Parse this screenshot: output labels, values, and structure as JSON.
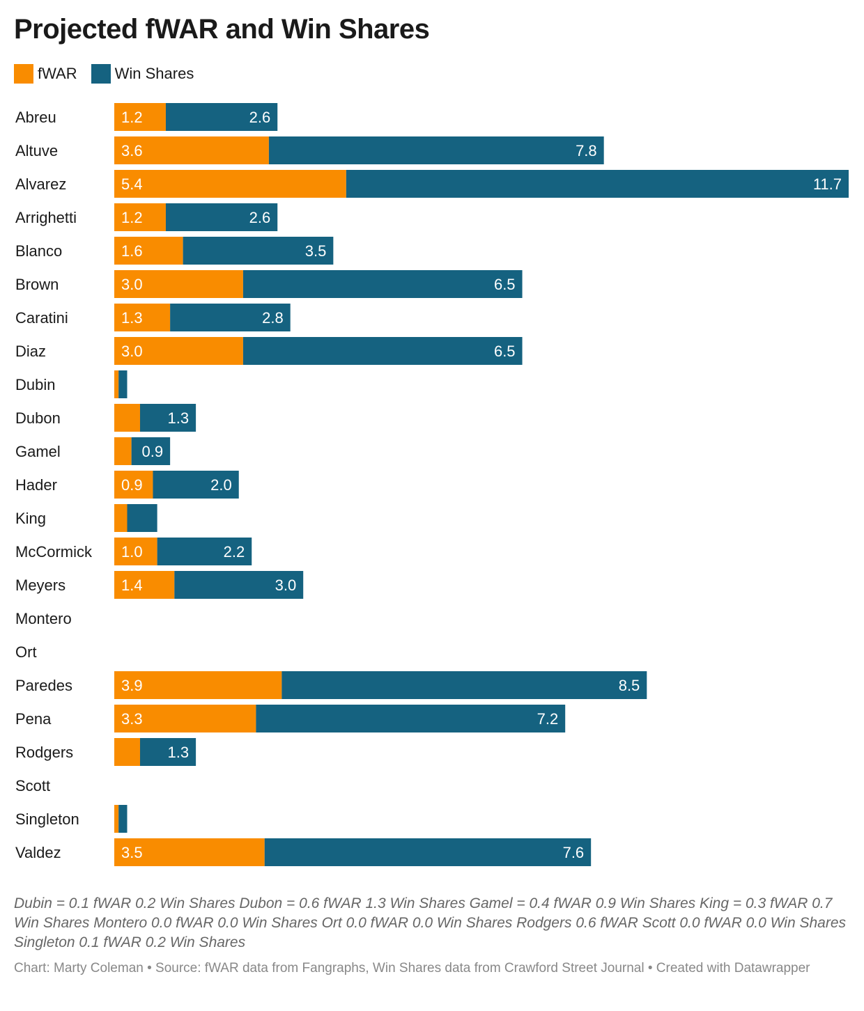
{
  "title": "Projected fWAR and Win Shares",
  "colors": {
    "fwar": "#f98c00",
    "ws": "#156280"
  },
  "chart_data": {
    "type": "bar",
    "orientation": "horizontal",
    "stacked": true,
    "title": "Projected fWAR and Win Shares",
    "legend_position": "top-left",
    "grid": false,
    "xlim": [
      0,
      17.1
    ],
    "categories": [
      "Abreu",
      "Altuve",
      "Alvarez",
      "Arrighetti",
      "Blanco",
      "Brown",
      "Caratini",
      "Diaz",
      "Dubin",
      "Dubon",
      "Gamel",
      "Hader",
      "King",
      "McCormick",
      "Meyers",
      "Montero",
      "Ort",
      "Paredes",
      "Pena",
      "Rodgers",
      "Scott",
      "Singleton",
      "Valdez"
    ],
    "series": [
      {
        "name": "fWAR",
        "values": [
          1.2,
          3.6,
          5.4,
          1.2,
          1.6,
          3.0,
          1.3,
          3.0,
          0.1,
          0.6,
          0.4,
          0.9,
          0.3,
          1.0,
          1.4,
          0.0,
          0.0,
          3.9,
          3.3,
          0.6,
          0.0,
          0.1,
          3.5
        ]
      },
      {
        "name": "Win Shares",
        "values": [
          2.6,
          7.8,
          11.7,
          2.6,
          3.5,
          6.5,
          2.8,
          6.5,
          0.2,
          1.3,
          0.9,
          2.0,
          0.7,
          2.2,
          3.0,
          0.0,
          0.0,
          8.5,
          7.2,
          1.3,
          0.0,
          0.2,
          7.6
        ]
      }
    ],
    "labels": {
      "fWAR": [
        "1.2",
        "3.6",
        "5.4",
        "1.2",
        "1.6",
        "3.0",
        "1.3",
        "3.0",
        "",
        "",
        "",
        "0.9",
        "",
        "1.0",
        "1.4",
        "",
        "",
        "3.9",
        "3.3",
        "",
        "",
        "",
        "3.5"
      ],
      "Win Shares": [
        "2.6",
        "7.8",
        "11.7",
        "2.6",
        "3.5",
        "6.5",
        "2.8",
        "6.5",
        "",
        "1.3",
        "0.9",
        "2.0",
        "",
        "2.2",
        "3.0",
        "",
        "",
        "8.5",
        "7.2",
        "1.3",
        "",
        "",
        "7.6"
      ]
    }
  },
  "notes": "Dubin = 0.1 fWAR 0.2 Win Shares Dubon = 0.6 fWAR 1.3 Win Shares Gamel = 0.4 fWAR 0.9 Win Shares King = 0.3 fWAR 0.7 Win Shares Montero 0.0 fWAR 0.0 Win Shares Ort 0.0 fWAR 0.0 Win Shares Rodgers 0.6 fWAR Scott 0.0 fWAR 0.0 Win Shares Singleton 0.1 fWAR 0.2 Win Shares",
  "credit": "Chart: Marty Coleman • Source: fWAR data from Fangraphs, Win Shares data from Crawford Street Journal • Created with Datawrapper"
}
